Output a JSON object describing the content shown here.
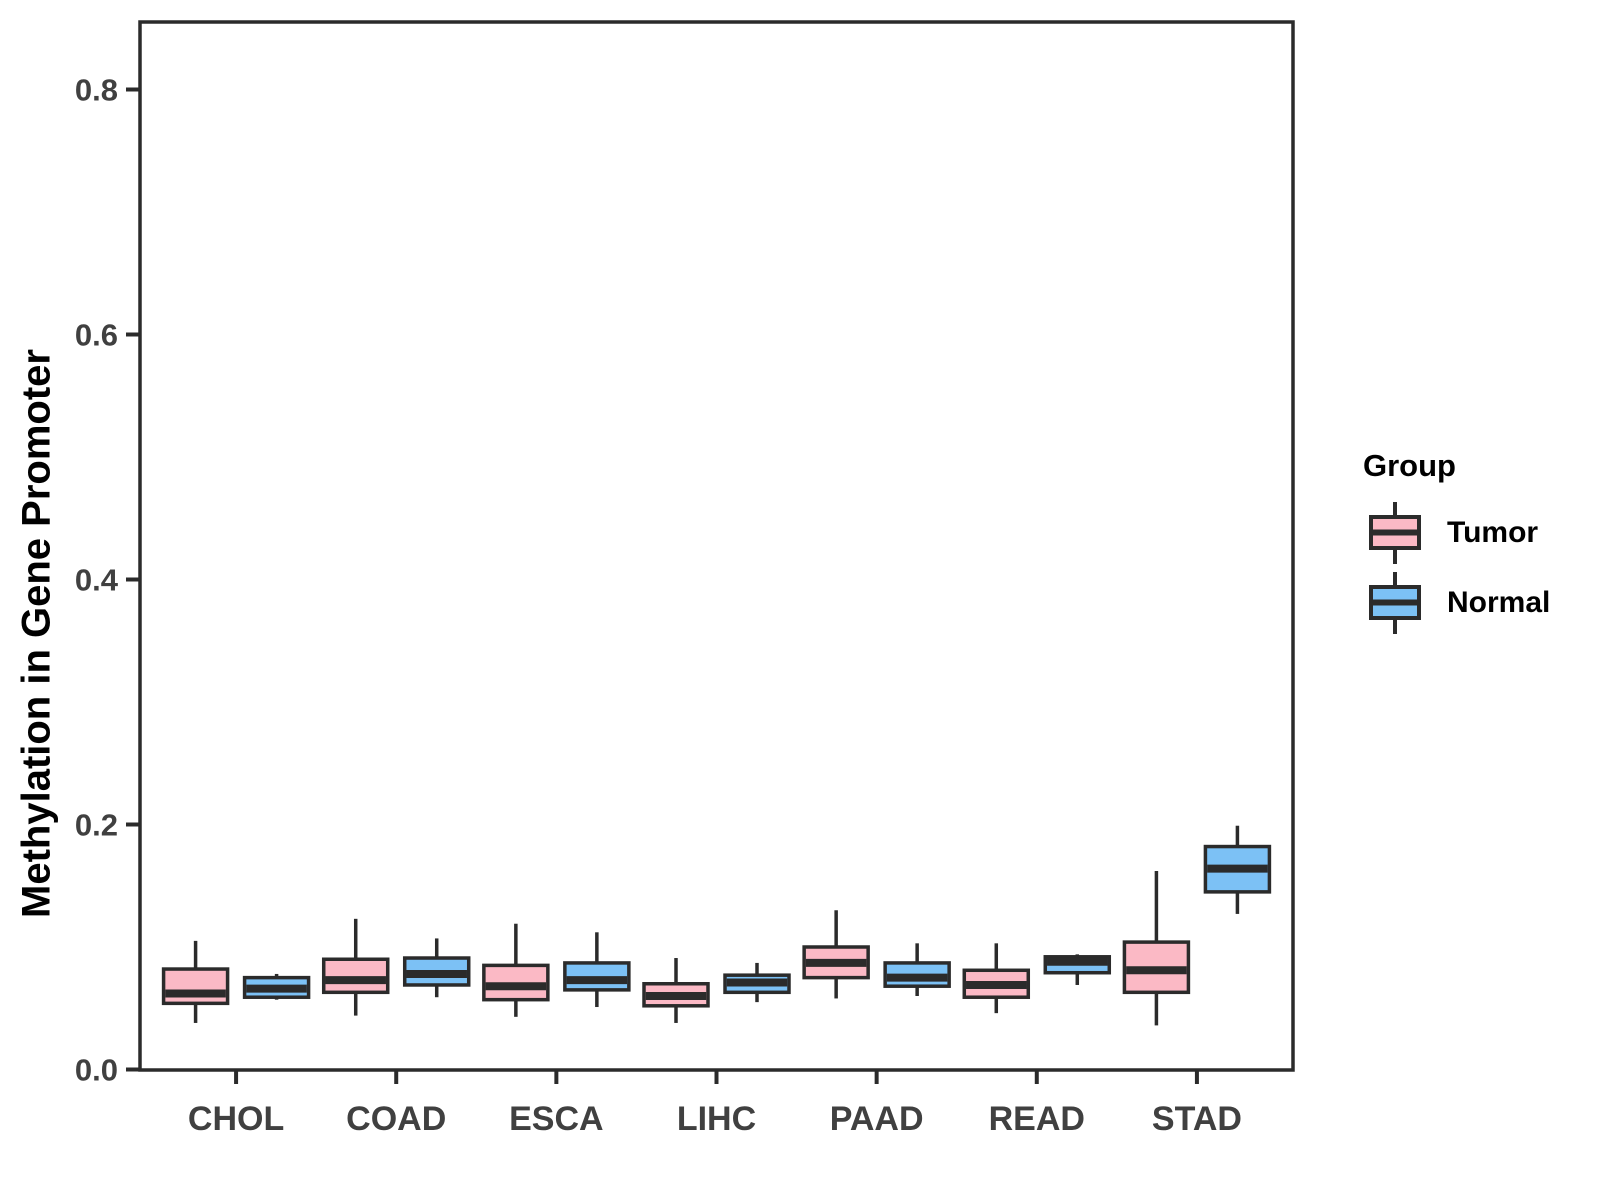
{
  "y_axis": {
    "title": "Methylation in Gene Promoter",
    "tick_labels": [
      "0.0",
      "0.2",
      "0.4",
      "0.6",
      "0.8"
    ],
    "tick_values": [
      0.0,
      0.2,
      0.4,
      0.6,
      0.8
    ]
  },
  "x_axis": {
    "categories": [
      "CHOL",
      "COAD",
      "ESCA",
      "LIHC",
      "PAAD",
      "READ",
      "STAD"
    ]
  },
  "legend": {
    "title": "Group",
    "items": [
      {
        "label": "Tumor",
        "color": "#FBB9C5"
      },
      {
        "label": "Normal",
        "color": "#7CC1F5"
      }
    ]
  },
  "chart_data": {
    "type": "boxplot",
    "title": "",
    "xlabel": "",
    "ylabel": "Methylation in Gene Promoter",
    "ylim": [
      0,
      0.855
    ],
    "grid": false,
    "legend_position": "right",
    "categories": [
      "CHOL",
      "COAD",
      "ESCA",
      "LIHC",
      "PAAD",
      "READ",
      "STAD"
    ],
    "series": [
      {
        "name": "Tumor",
        "color": "#FBB9C5",
        "stats": [
          {
            "whisker_low": 0.038,
            "q1": 0.054,
            "median": 0.062,
            "q3": 0.082,
            "whisker_high": 0.105
          },
          {
            "whisker_low": 0.044,
            "q1": 0.063,
            "median": 0.073,
            "q3": 0.09,
            "whisker_high": 0.123
          },
          {
            "whisker_low": 0.043,
            "q1": 0.057,
            "median": 0.068,
            "q3": 0.085,
            "whisker_high": 0.119
          },
          {
            "whisker_low": 0.038,
            "q1": 0.052,
            "median": 0.06,
            "q3": 0.07,
            "whisker_high": 0.091
          },
          {
            "whisker_low": 0.058,
            "q1": 0.075,
            "median": 0.087,
            "q3": 0.1,
            "whisker_high": 0.13
          },
          {
            "whisker_low": 0.046,
            "q1": 0.059,
            "median": 0.069,
            "q3": 0.081,
            "whisker_high": 0.103
          },
          {
            "whisker_low": 0.036,
            "q1": 0.063,
            "median": 0.081,
            "q3": 0.104,
            "whisker_high": 0.162
          }
        ]
      },
      {
        "name": "Normal",
        "color": "#7CC1F5",
        "stats": [
          {
            "whisker_low": 0.057,
            "q1": 0.059,
            "median": 0.066,
            "q3": 0.075,
            "whisker_high": 0.078
          },
          {
            "whisker_low": 0.059,
            "q1": 0.069,
            "median": 0.078,
            "q3": 0.091,
            "whisker_high": 0.107
          },
          {
            "whisker_low": 0.051,
            "q1": 0.065,
            "median": 0.073,
            "q3": 0.087,
            "whisker_high": 0.112
          },
          {
            "whisker_low": 0.055,
            "q1": 0.063,
            "median": 0.071,
            "q3": 0.077,
            "whisker_high": 0.087
          },
          {
            "whisker_low": 0.06,
            "q1": 0.068,
            "median": 0.075,
            "q3": 0.087,
            "whisker_high": 0.103
          },
          {
            "whisker_low": 0.069,
            "q1": 0.079,
            "median": 0.088,
            "q3": 0.092,
            "whisker_high": 0.094
          },
          {
            "whisker_low": 0.127,
            "q1": 0.145,
            "median": 0.164,
            "q3": 0.182,
            "whisker_high": 0.199
          }
        ]
      }
    ]
  },
  "style": {
    "stroke": "#2B2B2B",
    "panel_border": "#2B2B2B",
    "axis_text": "#404040",
    "background": "#FFFFFF"
  }
}
